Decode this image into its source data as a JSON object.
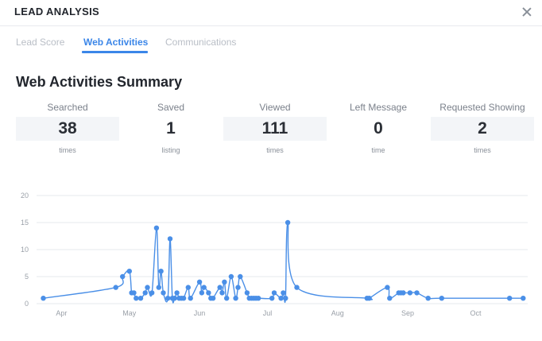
{
  "header": {
    "title": "LEAD ANALYSIS",
    "close_icon": "close-icon"
  },
  "tabs": [
    {
      "label": "Lead Score",
      "active": false
    },
    {
      "label": "Web Activities",
      "active": true
    },
    {
      "label": "Communications",
      "active": false
    }
  ],
  "summary": {
    "title": "Web Activities Summary",
    "stats": [
      {
        "label": "Searched",
        "value": "38",
        "unit": "times"
      },
      {
        "label": "Saved",
        "value": "1",
        "unit": "listing"
      },
      {
        "label": "Viewed",
        "value": "111",
        "unit": "times"
      },
      {
        "label": "Left Message",
        "value": "0",
        "unit": "time"
      },
      {
        "label": "Requested Showing",
        "value": "2",
        "unit": "times"
      }
    ]
  },
  "colors": {
    "accent": "#3b86e8",
    "line": "#4a8fe7",
    "grid": "#e6e8ec"
  },
  "chart_data": {
    "type": "line",
    "title": "",
    "xlabel": "",
    "ylabel": "",
    "ylim": [
      0,
      20
    ],
    "yticks": [
      0,
      5,
      10,
      15,
      20
    ],
    "x_tick_labels": [
      "Apr",
      "May",
      "Jun",
      "Jul",
      "Aug",
      "Sep",
      "Oct"
    ],
    "x_tick_dates": [
      "2019-04-01",
      "2019-05-01",
      "2019-06-01",
      "2019-07-01",
      "2019-08-01",
      "2019-09-01",
      "2019-10-01"
    ],
    "xlim": [
      "2019-03-21",
      "2019-10-24"
    ],
    "grid": true,
    "series": [
      {
        "x": [
          "2019-03-24",
          "2019-04-25",
          "2019-04-28",
          "2019-05-01",
          "2019-05-02",
          "2019-05-03",
          "2019-05-04",
          "2019-05-06",
          "2019-05-08",
          "2019-05-09",
          "2019-05-11",
          "2019-05-13",
          "2019-05-14",
          "2019-05-15",
          "2019-05-16",
          "2019-05-18",
          "2019-05-19",
          "2019-05-20",
          "2019-05-21",
          "2019-05-22",
          "2019-05-23",
          "2019-05-24",
          "2019-05-25",
          "2019-05-27",
          "2019-05-28",
          "2019-06-01",
          "2019-06-02",
          "2019-06-03",
          "2019-06-05",
          "2019-06-06",
          "2019-06-07",
          "2019-06-10",
          "2019-06-11",
          "2019-06-12",
          "2019-06-13",
          "2019-06-15",
          "2019-06-17",
          "2019-06-18",
          "2019-06-19",
          "2019-06-22",
          "2019-06-23",
          "2019-06-24",
          "2019-06-25",
          "2019-06-26",
          "2019-06-27",
          "2019-07-03",
          "2019-07-04",
          "2019-07-07",
          "2019-07-08",
          "2019-07-09",
          "2019-07-10",
          "2019-07-14",
          "2019-08-14",
          "2019-08-15",
          "2019-08-23",
          "2019-08-24",
          "2019-08-28",
          "2019-08-29",
          "2019-08-30",
          "2019-09-02",
          "2019-09-05",
          "2019-09-10",
          "2019-09-16",
          "2019-10-16",
          "2019-10-22"
        ],
        "values": [
          1,
          3,
          5,
          6,
          2,
          2,
          1,
          1,
          2,
          3,
          2,
          14,
          3,
          6,
          2,
          1,
          12,
          1,
          1,
          2,
          1,
          1,
          1,
          3,
          1,
          4,
          2,
          3,
          2,
          1,
          1,
          3,
          2,
          4,
          1,
          5,
          1,
          3,
          5,
          2,
          1,
          1,
          1,
          1,
          1,
          1,
          2,
          1,
          2,
          1,
          15,
          3,
          1,
          1,
          3,
          1,
          2,
          2,
          2,
          2,
          2,
          1,
          1,
          1,
          1
        ]
      }
    ]
  }
}
